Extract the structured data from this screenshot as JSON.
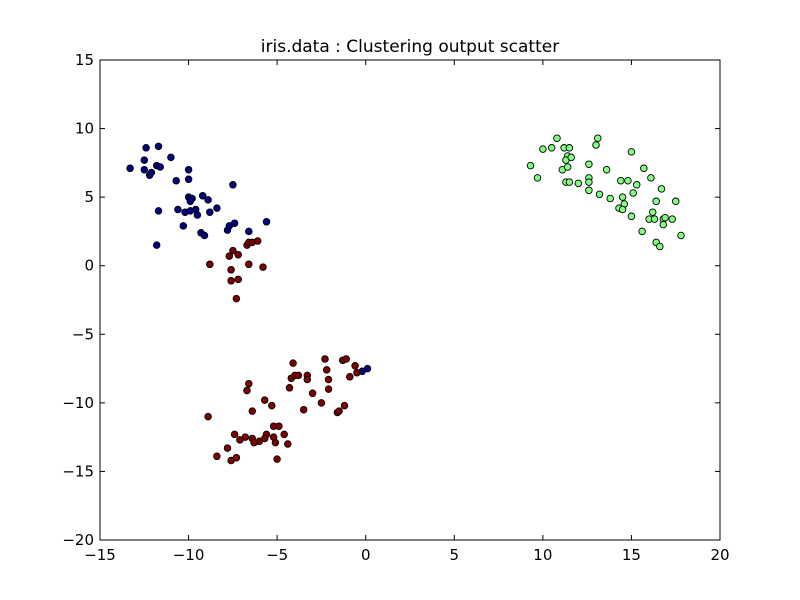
{
  "chart_data": {
    "type": "scatter",
    "title": "iris.data : Clustering output scatter",
    "xlabel": "",
    "ylabel": "",
    "xlim": [
      -15,
      20
    ],
    "ylim": [
      -20,
      15
    ],
    "xticks": [
      -15,
      -10,
      -5,
      0,
      5,
      10,
      15,
      20
    ],
    "yticks": [
      -20,
      -15,
      -10,
      -5,
      0,
      5,
      10,
      15
    ],
    "xtick_labels": [
      "−15",
      "−10",
      "−5",
      "0",
      "5",
      "10",
      "15",
      "20"
    ],
    "ytick_labels": [
      "−20",
      "−15",
      "−10",
      "−5",
      "0",
      "5",
      "10",
      "15"
    ],
    "grid": false,
    "series": [
      {
        "color": "#000080",
        "points": [
          [
            -13.3,
            7.1
          ],
          [
            -12.5,
            7.7
          ],
          [
            -12.4,
            8.6
          ],
          [
            -12.5,
            7.0
          ],
          [
            -12.1,
            6.8
          ],
          [
            -12.2,
            6.6
          ],
          [
            -11.8,
            7.3
          ],
          [
            -11.7,
            8.7
          ],
          [
            -11.6,
            7.2
          ],
          [
            -11.0,
            7.9
          ],
          [
            -11.7,
            4.0
          ],
          [
            -11.8,
            1.5
          ],
          [
            -10.7,
            6.2
          ],
          [
            -10.0,
            7.0
          ],
          [
            -10.0,
            6.3
          ],
          [
            -10.0,
            5.0
          ],
          [
            -9.8,
            4.9
          ],
          [
            -9.9,
            4.7
          ],
          [
            -10.6,
            4.1
          ],
          [
            -10.2,
            3.9
          ],
          [
            -9.9,
            4.0
          ],
          [
            -9.6,
            4.1
          ],
          [
            -10.3,
            2.9
          ],
          [
            -9.5,
            3.7
          ],
          [
            -9.2,
            5.1
          ],
          [
            -8.9,
            4.8
          ],
          [
            -8.8,
            3.9
          ],
          [
            -8.4,
            4.2
          ],
          [
            -9.3,
            2.4
          ],
          [
            -9.1,
            2.2
          ],
          [
            -7.8,
            2.6
          ],
          [
            -7.7,
            2.9
          ],
          [
            -7.4,
            3.1
          ],
          [
            -7.5,
            5.9
          ],
          [
            -6.6,
            2.5
          ],
          [
            -5.6,
            3.2
          ],
          [
            0.1,
            -7.5
          ],
          [
            -0.2,
            -7.7
          ]
        ]
      },
      {
        "color": "#800000",
        "points": [
          [
            -6.7,
            1.5
          ],
          [
            -6.6,
            1.7
          ],
          [
            -6.4,
            1.7
          ],
          [
            -6.1,
            1.8
          ],
          [
            -7.5,
            1.1
          ],
          [
            -7.7,
            0.7
          ],
          [
            -7.2,
            0.8
          ],
          [
            -6.6,
            0.1
          ],
          [
            -5.8,
            -0.1
          ],
          [
            -8.8,
            0.1
          ],
          [
            -7.6,
            -0.3
          ],
          [
            -7.6,
            -1.1
          ],
          [
            -7.2,
            -1.0
          ],
          [
            -7.3,
            -2.4
          ],
          [
            -4.1,
            -7.1
          ],
          [
            -4.2,
            -8.2
          ],
          [
            -4.0,
            -8.0
          ],
          [
            -3.8,
            -8.0
          ],
          [
            -3.3,
            -8.0
          ],
          [
            -3.3,
            -8.3
          ],
          [
            -2.3,
            -6.8
          ],
          [
            -2.2,
            -7.6
          ],
          [
            -2.1,
            -8.3
          ],
          [
            -1.3,
            -6.9
          ],
          [
            -1.1,
            -6.8
          ],
          [
            -0.6,
            -7.3
          ],
          [
            -0.5,
            -7.8
          ],
          [
            -0.9,
            -8.1
          ],
          [
            -2.1,
            -9.0
          ],
          [
            -4.3,
            -8.9
          ],
          [
            -6.6,
            -8.6
          ],
          [
            -6.7,
            -9.1
          ],
          [
            -5.7,
            -9.8
          ],
          [
            -3.0,
            -9.3
          ],
          [
            -2.5,
            -10.0
          ],
          [
            -1.6,
            -10.7
          ],
          [
            -1.5,
            -10.6
          ],
          [
            -1.2,
            -10.2
          ],
          [
            -3.5,
            -10.5
          ],
          [
            -5.3,
            -10.2
          ],
          [
            -6.4,
            -10.6
          ],
          [
            -8.9,
            -11.0
          ],
          [
            -5.2,
            -11.7
          ],
          [
            -4.9,
            -11.7
          ],
          [
            -4.6,
            -12.3
          ],
          [
            -5.2,
            -12.5
          ],
          [
            -5.1,
            -12.9
          ],
          [
            -5.6,
            -12.3
          ],
          [
            -5.7,
            -12.6
          ],
          [
            -6.0,
            -12.8
          ],
          [
            -6.4,
            -12.6
          ],
          [
            -6.3,
            -12.9
          ],
          [
            -6.8,
            -12.5
          ],
          [
            -7.1,
            -12.7
          ],
          [
            -7.4,
            -12.3
          ],
          [
            -7.8,
            -13.3
          ],
          [
            -4.4,
            -13.0
          ],
          [
            -5.0,
            -14.1
          ],
          [
            -8.4,
            -13.9
          ],
          [
            -7.6,
            -14.2
          ],
          [
            -7.3,
            -14.0
          ]
        ]
      },
      {
        "color": "#80ff80",
        "points": [
          [
            9.3,
            7.3
          ],
          [
            9.7,
            6.4
          ],
          [
            10.0,
            8.5
          ],
          [
            10.5,
            8.6
          ],
          [
            10.8,
            9.3
          ],
          [
            11.2,
            8.6
          ],
          [
            11.5,
            8.6
          ],
          [
            11.4,
            8.0
          ],
          [
            11.3,
            7.7
          ],
          [
            11.6,
            7.9
          ],
          [
            11.1,
            7.0
          ],
          [
            11.4,
            7.2
          ],
          [
            11.3,
            6.1
          ],
          [
            11.5,
            6.1
          ],
          [
            12.0,
            6.0
          ],
          [
            12.6,
            7.4
          ],
          [
            12.6,
            6.4
          ],
          [
            12.6,
            6.1
          ],
          [
            12.6,
            5.5
          ],
          [
            13.0,
            8.8
          ],
          [
            13.1,
            9.3
          ],
          [
            13.2,
            5.2
          ],
          [
            13.6,
            7.0
          ],
          [
            13.8,
            4.9
          ],
          [
            14.4,
            6.2
          ],
          [
            14.8,
            6.2
          ],
          [
            15.3,
            5.9
          ],
          [
            15.0,
            8.3
          ],
          [
            15.7,
            7.1
          ],
          [
            16.1,
            6.4
          ],
          [
            16.7,
            5.6
          ],
          [
            14.5,
            5.0
          ],
          [
            14.3,
            4.2
          ],
          [
            14.6,
            4.5
          ],
          [
            15.1,
            5.3
          ],
          [
            15.0,
            3.6
          ],
          [
            14.5,
            4.1
          ],
          [
            16.4,
            4.7
          ],
          [
            17.5,
            4.7
          ],
          [
            16.0,
            3.4
          ],
          [
            16.3,
            3.4
          ],
          [
            16.2,
            3.9
          ],
          [
            16.8,
            3.4
          ],
          [
            16.9,
            3.5
          ],
          [
            17.3,
            3.4
          ],
          [
            16.8,
            3.0
          ],
          [
            15.6,
            2.5
          ],
          [
            16.4,
            1.7
          ],
          [
            16.6,
            1.4
          ],
          [
            17.8,
            2.2
          ]
        ]
      }
    ]
  }
}
